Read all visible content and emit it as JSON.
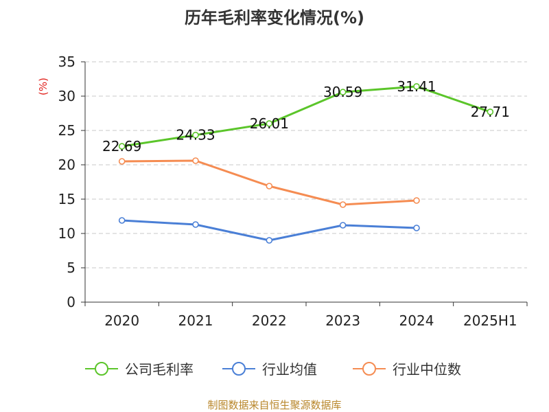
{
  "chart_data": {
    "type": "line",
    "title": "历年毛利率变化情况(%)",
    "ylabel": "(%)",
    "categories": [
      "2020",
      "2021",
      "2022",
      "2023",
      "2024",
      "2025H1"
    ],
    "yticks": [
      "0",
      "5",
      "10",
      "15",
      "20",
      "25",
      "30",
      "35"
    ],
    "ylim": [
      0,
      35
    ],
    "grid": true,
    "legend_position": "bottom",
    "series": [
      {
        "name": "公司毛利率",
        "color": "#5bc52a",
        "values": [
          22.69,
          24.33,
          26.01,
          30.59,
          31.41,
          27.71
        ],
        "labels": [
          "22.69",
          "24.33",
          "26.01",
          "30.59",
          "31.41",
          "27.71"
        ]
      },
      {
        "name": "行业均值",
        "color": "#4a7fd6",
        "values": [
          11.9,
          11.3,
          9.0,
          11.2,
          10.8,
          null
        ]
      },
      {
        "name": "行业中位数",
        "color": "#f58c52",
        "values": [
          20.5,
          20.6,
          16.9,
          14.2,
          14.8,
          null
        ]
      }
    ]
  },
  "source": "制图数据来自恒生聚源数据库"
}
